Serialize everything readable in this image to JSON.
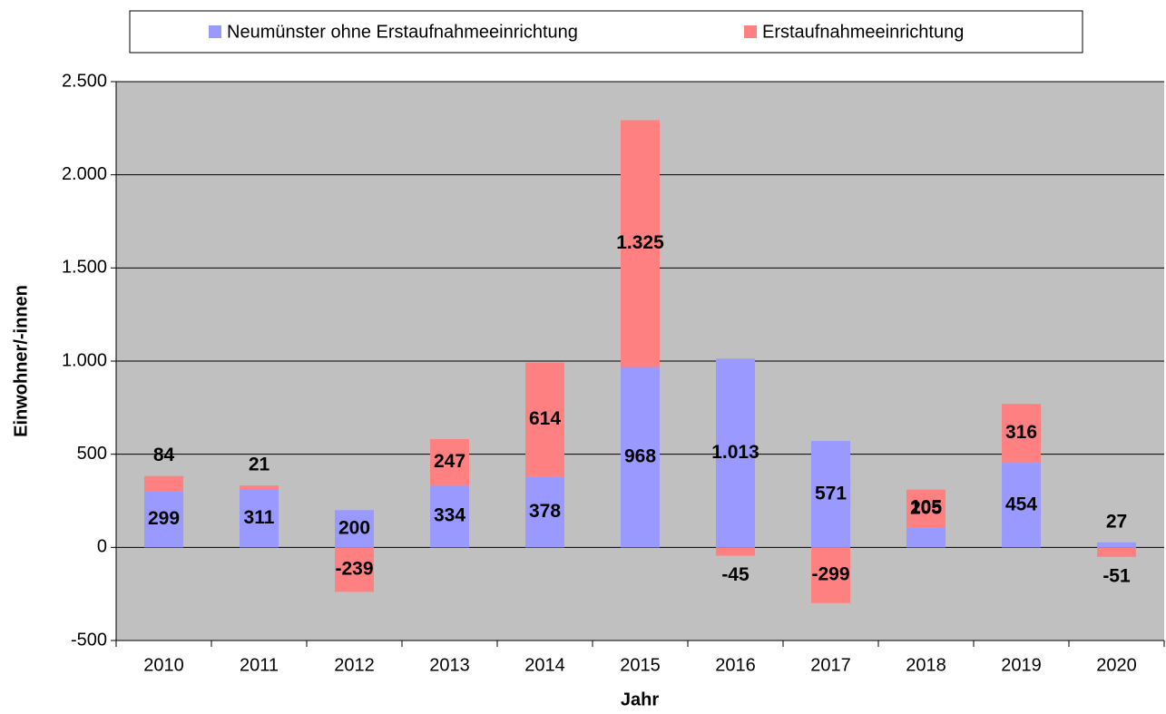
{
  "chart_data": {
    "type": "stacked_bar",
    "x_label": "Jahr",
    "y_label": "Einwohner/-innen",
    "categories": [
      "2010",
      "2011",
      "2012",
      "2013",
      "2014",
      "2015",
      "2016",
      "2017",
      "2018",
      "2019",
      "2020"
    ],
    "series": [
      {
        "name": "Neumünster ohne Erstaufnahmeeinrichtung",
        "color": "#9999ff",
        "values": [
          299,
          311,
          200,
          334,
          378,
          968,
          1013,
          571,
          105,
          454,
          27
        ],
        "value_labels": [
          "299",
          "311",
          "200",
          "334",
          "378",
          "968",
          "1.013",
          "571",
          "105",
          "454",
          "27"
        ]
      },
      {
        "name": "Erstaufnahmeeinrichtung",
        "color": "#ff8080",
        "values": [
          84,
          21,
          -239,
          247,
          614,
          1325,
          -45,
          -299,
          205,
          316,
          -51
        ],
        "value_labels": [
          "84",
          "21",
          "-239",
          "247",
          "614",
          "1.325",
          "-45",
          "-299",
          "205",
          "316",
          "-51"
        ]
      }
    ],
    "ylim": [
      -500,
      2500
    ],
    "yticks": [
      -500,
      0,
      500,
      {
        "value": 1000,
        "label": "1.000"
      },
      {
        "value": 1500,
        "label": "1.500"
      },
      {
        "value": 2000,
        "label": "2.000"
      },
      {
        "value": 2500,
        "label": "2.500"
      }
    ],
    "grid": true,
    "legend": "top",
    "plot_background": "#c0c0c0"
  }
}
